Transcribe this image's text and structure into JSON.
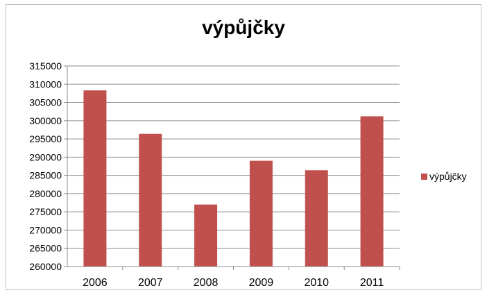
{
  "chart_data": {
    "type": "bar",
    "title": "výpůjčky",
    "categories": [
      "2006",
      "2007",
      "2008",
      "2009",
      "2010",
      "2011"
    ],
    "series": [
      {
        "name": "výpůjčky",
        "values": [
          308300,
          296400,
          277000,
          289000,
          286400,
          301200
        ],
        "color": "#c0504d"
      }
    ],
    "ylim": [
      260000,
      315000
    ],
    "yticks": [
      260000,
      265000,
      270000,
      275000,
      280000,
      285000,
      290000,
      295000,
      300000,
      305000,
      310000,
      315000
    ],
    "grid": true,
    "legend": "right"
  }
}
